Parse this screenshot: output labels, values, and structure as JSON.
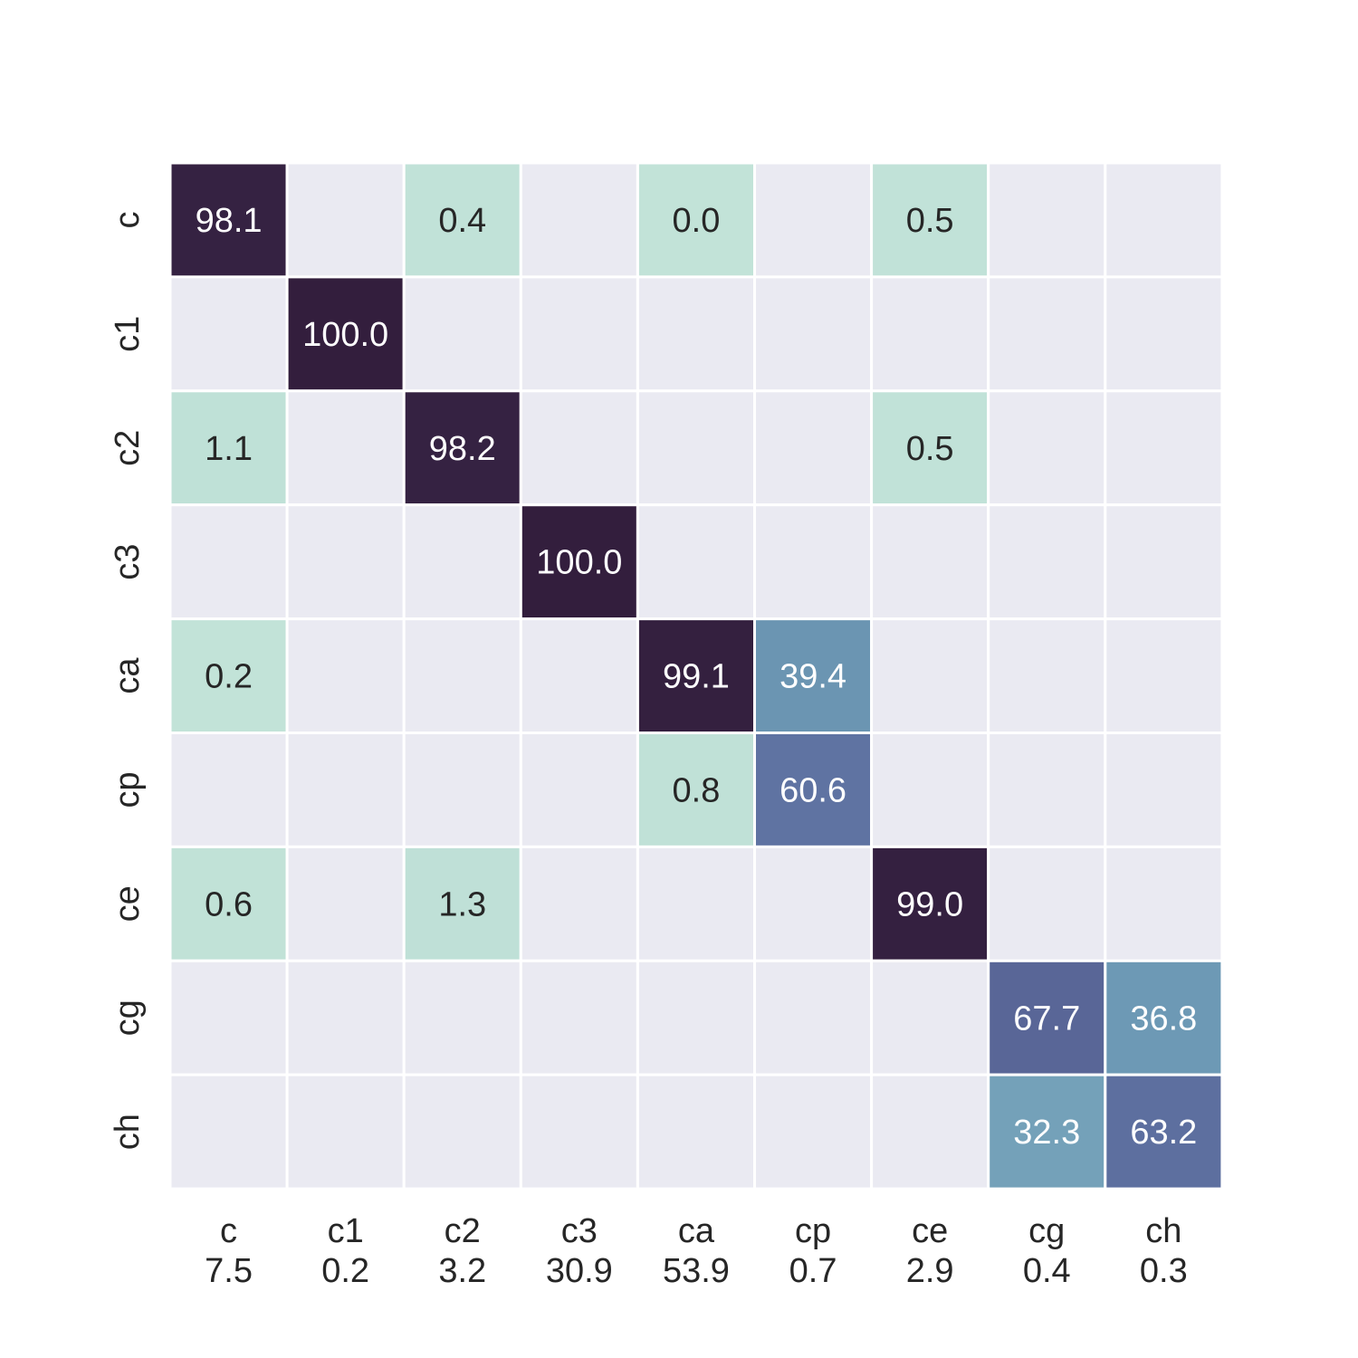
{
  "chart_data": {
    "type": "heatmap",
    "title": "",
    "xlabel": "",
    "ylabel": "",
    "rows": [
      "c",
      "c1",
      "c2",
      "c3",
      "ca",
      "cp",
      "ce",
      "cg",
      "ch"
    ],
    "columns": [
      "c",
      "c1",
      "c2",
      "c3",
      "ca",
      "cp",
      "ce",
      "cg",
      "ch"
    ],
    "column_sublabels": [
      "7.5",
      "0.2",
      "3.2",
      "30.9",
      "53.9",
      "0.7",
      "2.9",
      "0.4",
      "0.3"
    ],
    "values": [
      [
        "98.1",
        null,
        "0.4",
        null,
        "0.0",
        null,
        "0.5",
        null,
        null
      ],
      [
        null,
        "100.0",
        null,
        null,
        null,
        null,
        null,
        null,
        null
      ],
      [
        "1.1",
        null,
        "98.2",
        null,
        null,
        null,
        "0.5",
        null,
        null
      ],
      [
        null,
        null,
        null,
        "100.0",
        null,
        null,
        null,
        null,
        null
      ],
      [
        "0.2",
        null,
        null,
        null,
        "99.1",
        "39.4",
        null,
        null,
        null
      ],
      [
        null,
        null,
        null,
        null,
        "0.8",
        "60.6",
        null,
        null,
        null
      ],
      [
        "0.6",
        null,
        "1.3",
        null,
        null,
        null,
        "99.0",
        null,
        null
      ],
      [
        null,
        null,
        null,
        null,
        null,
        null,
        null,
        "67.7",
        "36.8"
      ],
      [
        null,
        null,
        null,
        null,
        null,
        null,
        null,
        "32.3",
        "63.2"
      ]
    ],
    "value_range": [
      0,
      100
    ],
    "empty_cell_color": "#eaeaf2",
    "grid_line_color": "#ffffff",
    "colorbar": false,
    "colors": {
      "low": "#c2e3d8",
      "mid_high": "#6e9cb6",
      "high": "#5c6c9e",
      "max": "#331e3d",
      "dark_text": "#262626",
      "light_text": "#ffffff"
    }
  }
}
